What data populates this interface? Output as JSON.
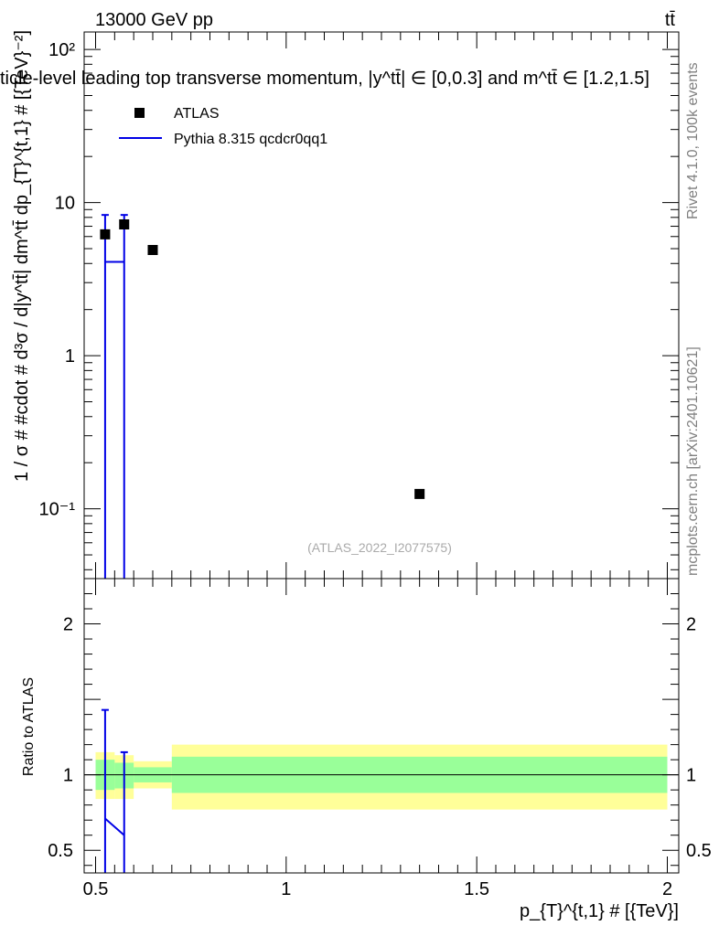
{
  "header": {
    "energy_label": "13000 GeV pp",
    "process_label": "tt̄",
    "title": "ticle-level leading top transverse momentum, |y^tt̄| ∈ [0,0.3] and m^tt̄ ∈ [1.2,1.5]"
  },
  "side": {
    "rivet": "Rivet 4.1.0,  100k events",
    "mcplots": "mcplots.cern.ch [arXiv:2401.10621]"
  },
  "watermark": "(ATLAS_2022_I2077575)",
  "legend": {
    "data_label": "ATLAS",
    "mc_label": "Pythia 8.315 qcdcr0qq1"
  },
  "colors": {
    "mc": "#0000e6",
    "band_inner": "#99ff99",
    "band_outer": "#ffff99",
    "data": "#000000"
  },
  "chart_data": [
    {
      "type": "scatter",
      "panel": "main",
      "ylabel": "1 / σ # #cdot # d³σ / d|y^tt̄| dm^tt̄ dp_{T}^{t,1} # [{TeV}⁻²]",
      "yscale": "log",
      "ylim": [
        0.035,
        130
      ],
      "xlim": [
        0.47,
        2.03
      ],
      "yticks": [
        0.1,
        1,
        10,
        100
      ],
      "ytick_labels": [
        "10⁻¹",
        "1",
        "10",
        "10²"
      ],
      "series": [
        {
          "name": "ATLAS",
          "marker": "square",
          "points": [
            {
              "x": 0.525,
              "y": 6.2
            },
            {
              "x": 0.575,
              "y": 7.2
            },
            {
              "x": 0.65,
              "y": 4.9
            },
            {
              "x": 1.35,
              "y": 0.125
            }
          ]
        },
        {
          "name": "Pythia 8.315 qcdcr0qq1",
          "style": "histogram",
          "bins": [
            {
              "x0": 0.55,
              "x1": 0.6,
              "y": 4.1,
              "err_lo": 0.001,
              "err_hi": 8.3
            }
          ],
          "error_bars": [
            {
              "x": 0.525,
              "y_lo": 0.001,
              "y_hi": 8.3
            },
            {
              "x": 0.575,
              "y_lo": 0.001,
              "y_hi": 8.3
            }
          ]
        }
      ]
    },
    {
      "type": "line",
      "panel": "ratio",
      "ylabel": "Ratio to ATLAS",
      "xlabel": "p_{T}^{t,1} # [{TeV}]",
      "ylim": [
        0.35,
        2.3
      ],
      "xlim": [
        0.47,
        2.03
      ],
      "yticks": [
        0.5,
        1,
        2
      ],
      "ytick_labels": [
        "0.5",
        "1",
        "2"
      ],
      "xticks": [
        0.5,
        1,
        1.5,
        2
      ],
      "xtick_labels": [
        "0.5",
        "1",
        "1.5",
        "2"
      ],
      "bands": [
        {
          "x0": 0.5,
          "x1": 0.55,
          "inner": [
            0.9,
            1.1
          ],
          "outer": [
            0.84,
            1.15
          ]
        },
        {
          "x0": 0.55,
          "x1": 0.6,
          "inner": [
            0.91,
            1.08
          ],
          "outer": [
            0.84,
            1.13
          ]
        },
        {
          "x0": 0.6,
          "x1": 0.7,
          "inner": [
            0.95,
            1.05
          ],
          "outer": [
            0.91,
            1.09
          ]
        },
        {
          "x0": 0.7,
          "x1": 2.0,
          "inner": [
            0.88,
            1.12
          ],
          "outer": [
            0.77,
            1.2
          ]
        }
      ],
      "mc_ratio": [
        {
          "x": 0.525,
          "y": 0.71,
          "y_lo": 0.35,
          "y_hi": 1.43
        },
        {
          "x": 0.575,
          "y": 0.6,
          "y_lo": 0.35,
          "y_hi": 1.15
        }
      ]
    }
  ]
}
